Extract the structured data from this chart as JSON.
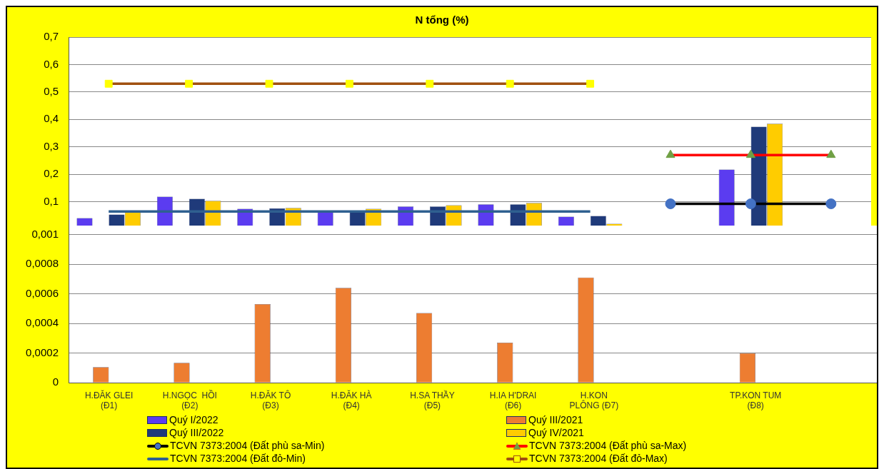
{
  "chart_data": [
    {
      "type": "bar",
      "title": "N tổng (%)",
      "categories": [
        null,
        null,
        null,
        null,
        null,
        null,
        null,
        null,
        null,
        null
      ],
      "series": [
        {
          "name": "Quý I/2022",
          "color": "#5b3cf0",
          "values": [
            0.04,
            0.118,
            0.074,
            0.064,
            0.082,
            0.09,
            0.045,
            null,
            0.217,
            null
          ]
        },
        {
          "name": "Quý III/2022",
          "color": "#1f3a7a",
          "values": [
            0.053,
            0.11,
            0.076,
            0.064,
            0.082,
            0.09,
            0.048,
            null,
            0.373,
            null
          ]
        },
        {
          "name": "Quý IV/2021",
          "color": "#ffcc00",
          "values": [
            0.061,
            0.103,
            0.077,
            0.074,
            0.087,
            0.095,
            0.019,
            null,
            0.384,
            null
          ]
        },
        {
          "name": "TCVN 7373:2004 (Đất phù sa-Min)",
          "type": "line",
          "color": "#000000",
          "marker": "circle",
          "colors": [
            null,
            null,
            null,
            null,
            null,
            null,
            null,
            "#4472c4",
            "#4472c4",
            "#4472c4"
          ],
          "values": [
            null,
            null,
            null,
            null,
            null,
            null,
            null,
            0.092,
            0.092,
            0.092
          ]
        },
        {
          "name": "TCVN 7373:2004 (Đất phù sa-Max)",
          "type": "line",
          "color": "#ff0000",
          "marker": "triangle",
          "colors": [
            null,
            null,
            null,
            null,
            null,
            null,
            null,
            "#70a044",
            "#70a044",
            "#70a044"
          ],
          "values": [
            null,
            null,
            null,
            null,
            null,
            null,
            null,
            0.27,
            0.27,
            0.27
          ]
        },
        {
          "name": "TCVN 7373:2004 (Đất đỏ-Min)",
          "type": "line",
          "color": "#2f6090",
          "marker": "none",
          "values": [
            0.064,
            0.064,
            0.064,
            0.064,
            0.064,
            0.064,
            0.064,
            null,
            null,
            null
          ]
        },
        {
          "name": "TCVN 7373:2004 (Đất đỏ-Max)",
          "type": "line",
          "color": "#a0500f",
          "marker": "square",
          "colors": [
            "#ffff00",
            "#ffff00",
            "#ffff00",
            "#ffff00",
            "#ffff00",
            "#ffff00",
            "#ffff00",
            null,
            null,
            null
          ],
          "values": [
            0.53,
            0.53,
            0.53,
            0.53,
            0.53,
            0.53,
            0.53,
            null,
            null,
            null
          ]
        }
      ],
      "ylim": [
        0.01,
        0.7
      ],
      "yticks": [
        {
          "value": 0.1,
          "label": "0,1"
        },
        {
          "value": 0.2,
          "label": "0,2"
        },
        {
          "value": 0.3,
          "label": "0,3"
        },
        {
          "value": 0.4,
          "label": "0,4"
        },
        {
          "value": 0.5,
          "label": "0,5"
        },
        {
          "value": 0.6,
          "label": "0,6"
        },
        {
          "value": 0.7,
          "label": "0,7"
        }
      ],
      "grid": "y",
      "tick_labels": "y",
      "legend": "bottom"
    },
    {
      "type": "bar",
      "categories": [
        "H.ĐĂK GLEI\n(Đ1)",
        "H.NGỌC  HỒI\n(Đ2)",
        "H.ĐĂK TÔ\n(Đ3)",
        "H.ĐĂK HÀ\n(Đ4)",
        "H.SA THẦY\n(Đ5)",
        "H.IA H'DRAI\n(Đ6)",
        "H.KON\nPLÔNG (Đ7)",
        null,
        "TP.KON TUM\n(Đ8)",
        null
      ],
      "series": [
        {
          "name": "Quý III/2021",
          "color": "#ed7d31",
          "values": [
            0.000106,
            0.000135,
            0.00053,
            0.00064,
            0.00047,
            0.00027,
            0.00071,
            null,
            0.0002,
            null
          ]
        }
      ],
      "ylim": [
        0,
        0.00106
      ],
      "yticks": [
        0,
        {
          "value": 0.0002,
          "label": "0,0002"
        },
        {
          "value": 0.0004,
          "label": "0,0004"
        },
        {
          "value": 0.0006,
          "label": "0,0006"
        },
        {
          "value": 0.0008,
          "label": "0,0008"
        },
        {
          "value": 0.001,
          "label": "0,001"
        }
      ],
      "grid": "y",
      "legend": "bottom"
    }
  ]
}
